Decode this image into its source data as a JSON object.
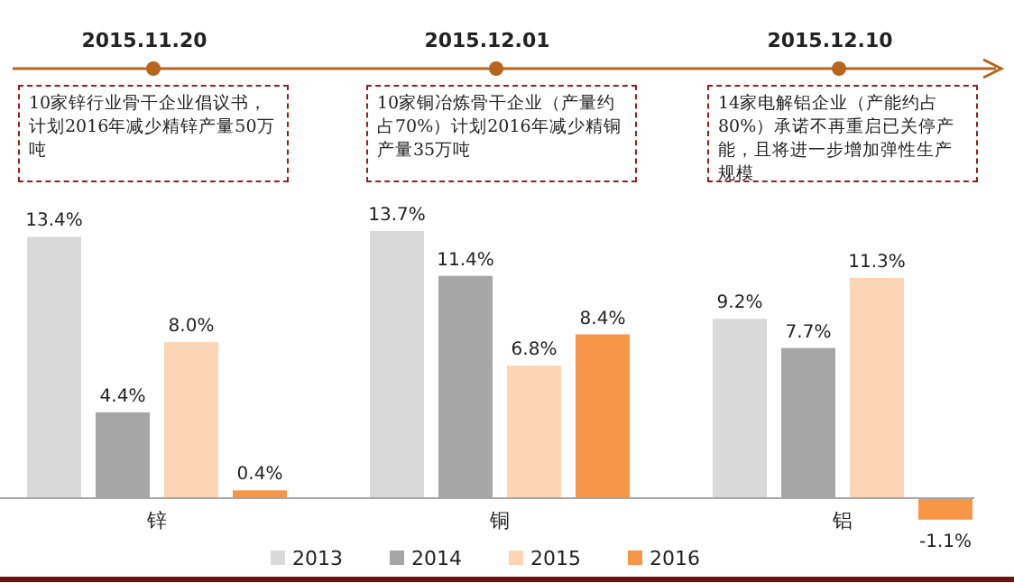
{
  "chart_data": {
    "type": "bar",
    "categories": [
      "锌",
      "铜",
      "铝"
    ],
    "series": [
      {
        "name": "2013",
        "color": "#d9d9d9",
        "values": [
          13.4,
          13.7,
          9.2
        ],
        "value_labels": [
          "13.4%",
          "13.7%",
          "9.2%"
        ]
      },
      {
        "name": "2014",
        "color": "#a6a6a6",
        "values": [
          4.4,
          11.4,
          7.7
        ],
        "value_labels": [
          "4.4%",
          "11.4%",
          "7.7%"
        ]
      },
      {
        "name": "2015",
        "color": "#fbd5b5",
        "values": [
          8.0,
          6.8,
          11.3
        ],
        "value_labels": [
          "8.0%",
          "6.8%",
          "11.3%"
        ]
      },
      {
        "name": "2016",
        "color": "#f79646",
        "values": [
          0.4,
          8.4,
          -1.1
        ],
        "value_labels": [
          "0.4%",
          "8.4%",
          "-1.1%"
        ]
      }
    ],
    "annotations": [
      "2015.11.20",
      "10家锌行业骨干企业倡议书，计划2016年减少精锌产量50万吨",
      "2015.12.01",
      "10家铜冶炼骨干企业（产量约占70%）计划2016年减少精铜产量35万吨",
      "2015.12.10",
      "14家电解铝企业（产能约占80%）承诺不再重启已关停产能，且将进一步增加弹性生产规模"
    ],
    "legend": "bottom"
  }
}
